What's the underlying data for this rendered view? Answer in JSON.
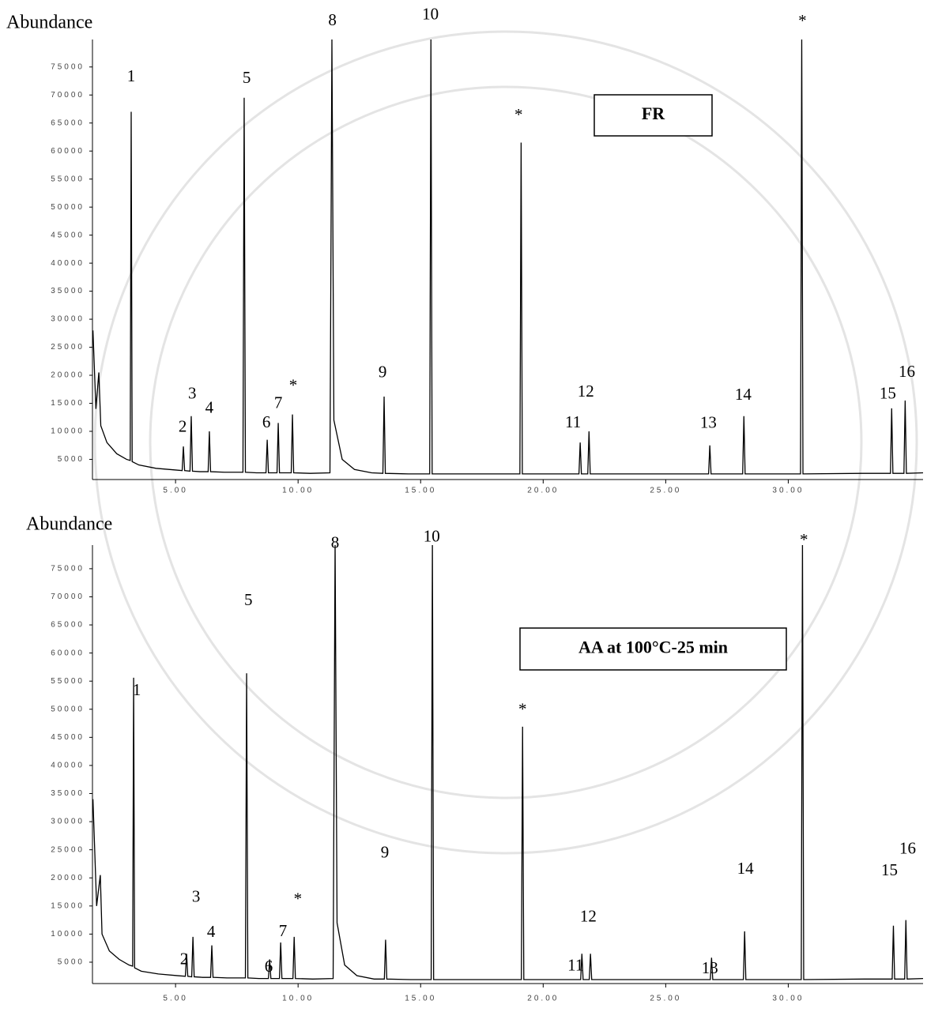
{
  "chart_data": [
    {
      "type": "line",
      "y_axis_label": "Abundance",
      "label": "FR",
      "color": "#000000",
      "xlim": [
        1.61,
        35.5
      ],
      "ylim": [
        1400,
        79900
      ],
      "xticks": [
        {
          "value": 5,
          "label": "5.00"
        },
        {
          "value": 10,
          "label": "10.00"
        },
        {
          "value": 15,
          "label": "15.00"
        },
        {
          "value": 20,
          "label": "20.00"
        },
        {
          "value": 25,
          "label": "25.00"
        },
        {
          "value": 30,
          "label": "30.00"
        }
      ],
      "yticks": [
        5000,
        10000,
        15000,
        20000,
        25000,
        30000,
        35000,
        40000,
        45000,
        50000,
        55000,
        60000,
        65000,
        70000,
        75000
      ],
      "x": [
        1.63,
        1.75,
        1.87,
        1.95,
        2.2,
        2.6,
        3.0,
        3.15,
        3.19,
        3.23,
        3.5,
        4.2,
        5.0,
        5.27,
        5.32,
        5.37,
        5.59,
        5.64,
        5.69,
        6.0,
        6.33,
        6.38,
        6.43,
        7.0,
        7.75,
        7.8,
        7.85,
        8.3,
        8.69,
        8.74,
        8.79,
        9.14,
        9.19,
        9.24,
        9.72,
        9.77,
        9.82,
        10.5,
        11.3,
        11.38,
        11.46,
        11.8,
        12.3,
        13.0,
        13.46,
        13.51,
        13.56,
        14.5,
        15.37,
        15.42,
        15.47,
        17.0,
        19.05,
        19.1,
        19.15,
        20.5,
        21.46,
        21.51,
        21.56,
        21.82,
        21.87,
        21.92,
        24.0,
        26.75,
        26.8,
        26.85,
        28.14,
        28.19,
        28.24,
        30.5,
        30.55,
        30.6,
        33.0,
        34.17,
        34.22,
        34.27,
        34.72,
        34.77,
        34.82,
        35.5
      ],
      "values": [
        28000,
        14000,
        20500,
        11000,
        8000,
        6000,
        5000,
        4800,
        67000,
        4600,
        4000,
        3400,
        3100,
        3000,
        7300,
        3000,
        2900,
        12700,
        2900,
        2800,
        2800,
        10000,
        2800,
        2700,
        2700,
        69500,
        2700,
        2600,
        2600,
        8500,
        2600,
        2600,
        11500,
        2600,
        2600,
        13000,
        2600,
        2500,
        2600,
        80000,
        12000,
        5000,
        3200,
        2600,
        2500,
        16200,
        2500,
        2400,
        2400,
        80000,
        2400,
        2400,
        2400,
        61500,
        2400,
        2400,
        2400,
        8000,
        2400,
        2400,
        10000,
        2400,
        2400,
        2400,
        7500,
        2400,
        2400,
        12700,
        2400,
        2400,
        80000,
        2400,
        2500,
        2500,
        14100,
        2500,
        2500,
        15500,
        2500,
        2600
      ],
      "annotations": [
        {
          "text": "1",
          "x": 3.19,
          "y": 73100
        },
        {
          "text": "2",
          "x": 5.29,
          "y": 10600
        },
        {
          "text": "3",
          "x": 5.68,
          "y": 16500
        },
        {
          "text": "4",
          "x": 6.38,
          "y": 14000
        },
        {
          "text": "5",
          "x": 7.9,
          "y": 72800
        },
        {
          "text": "6",
          "x": 8.71,
          "y": 11400
        },
        {
          "text": "7",
          "x": 9.19,
          "y": 14800
        },
        {
          "text": "*",
          "x": 9.8,
          "y": 17900
        },
        {
          "text": "8",
          "x": 11.4,
          "y": 83100
        },
        {
          "text": "9",
          "x": 13.45,
          "y": 20300
        },
        {
          "text": "10",
          "x": 15.4,
          "y": 84200
        },
        {
          "text": "*",
          "x": 19.0,
          "y": 66200
        },
        {
          "text": "11",
          "x": 21.22,
          "y": 11400
        },
        {
          "text": "12",
          "x": 21.74,
          "y": 16900
        },
        {
          "text": "13",
          "x": 26.74,
          "y": 11300
        },
        {
          "text": "14",
          "x": 28.16,
          "y": 16300
        },
        {
          "text": "*",
          "x": 30.58,
          "y": 83000
        },
        {
          "text": "15",
          "x": 34.06,
          "y": 16500
        },
        {
          "text": "16",
          "x": 34.84,
          "y": 20400
        }
      ]
    },
    {
      "type": "line",
      "y_axis_label": "Abundance",
      "label": "AA at 100°C-25 min",
      "color": "#000000",
      "xlim": [
        1.61,
        35.5
      ],
      "ylim": [
        1200,
        79200
      ],
      "xticks": [
        {
          "value": 5,
          "label": "5.00"
        },
        {
          "value": 10,
          "label": "10.00"
        },
        {
          "value": 15,
          "label": "15.00"
        },
        {
          "value": 20,
          "label": "20.00"
        },
        {
          "value": 25,
          "label": "25.00"
        },
        {
          "value": 30,
          "label": "30.00"
        }
      ],
      "yticks": [
        5000,
        10000,
        15000,
        20000,
        25000,
        30000,
        35000,
        40000,
        45000,
        50000,
        55000,
        60000,
        65000,
        70000,
        75000
      ],
      "x": [
        1.63,
        1.78,
        1.93,
        2.0,
        2.3,
        2.7,
        3.1,
        3.25,
        3.29,
        3.33,
        3.6,
        4.3,
        5.1,
        5.4,
        5.45,
        5.5,
        5.66,
        5.71,
        5.76,
        6.1,
        6.43,
        6.48,
        6.53,
        7.1,
        7.85,
        7.9,
        7.95,
        8.4,
        8.79,
        8.84,
        8.89,
        9.24,
        9.29,
        9.34,
        9.79,
        9.84,
        9.89,
        10.6,
        11.43,
        11.51,
        11.59,
        11.9,
        12.4,
        13.1,
        13.52,
        13.57,
        13.62,
        14.6,
        15.43,
        15.48,
        15.53,
        17.1,
        19.11,
        19.16,
        19.21,
        20.6,
        21.53,
        21.58,
        21.63,
        21.88,
        21.93,
        21.98,
        24.1,
        26.82,
        26.87,
        26.92,
        28.17,
        28.22,
        28.27,
        30.53,
        30.58,
        30.63,
        33.1,
        34.24,
        34.29,
        34.34,
        34.75,
        34.8,
        34.85,
        35.5
      ],
      "values": [
        34000,
        15000,
        20500,
        10000,
        7000,
        5500,
        4500,
        4300,
        55600,
        4000,
        3400,
        2900,
        2600,
        2500,
        6500,
        2500,
        2400,
        9500,
        2400,
        2300,
        2300,
        8000,
        2300,
        2200,
        2200,
        56400,
        2200,
        2100,
        2100,
        5500,
        2100,
        2100,
        8500,
        2100,
        2100,
        9500,
        2100,
        2000,
        2100,
        80000,
        12000,
        4500,
        2600,
        2000,
        2000,
        9000,
        2000,
        1900,
        1900,
        80000,
        1900,
        1900,
        1900,
        46900,
        1900,
        1900,
        1900,
        6500,
        1900,
        1900,
        6500,
        1900,
        1900,
        1900,
        5800,
        1900,
        1900,
        10500,
        1900,
        1900,
        80000,
        1900,
        2000,
        2000,
        11500,
        2000,
        2000,
        12500,
        2000,
        2100
      ],
      "annotations": [
        {
          "text": "1",
          "x": 3.42,
          "y": 53200
        },
        {
          "text": "2",
          "x": 5.35,
          "y": 5300
        },
        {
          "text": "3",
          "x": 5.84,
          "y": 16400
        },
        {
          "text": "4",
          "x": 6.45,
          "y": 10200
        },
        {
          "text": "5",
          "x": 7.97,
          "y": 69200
        },
        {
          "text": "6",
          "x": 8.8,
          "y": 4000
        },
        {
          "text": "7",
          "x": 9.38,
          "y": 10300
        },
        {
          "text": "*",
          "x": 9.99,
          "y": 16000
        },
        {
          "text": "8",
          "x": 11.51,
          "y": 79400
        },
        {
          "text": "9",
          "x": 13.54,
          "y": 24300
        },
        {
          "text": "10",
          "x": 15.45,
          "y": 80500
        },
        {
          "text": "*",
          "x": 19.16,
          "y": 49700
        },
        {
          "text": "11",
          "x": 21.32,
          "y": 4200
        },
        {
          "text": "12",
          "x": 21.84,
          "y": 12900
        },
        {
          "text": "13",
          "x": 26.8,
          "y": 3700
        },
        {
          "text": "14",
          "x": 28.25,
          "y": 21400
        },
        {
          "text": "*",
          "x": 30.64,
          "y": 79900
        },
        {
          "text": "15",
          "x": 34.13,
          "y": 21100
        },
        {
          "text": "16",
          "x": 34.87,
          "y": 25000
        }
      ]
    }
  ]
}
